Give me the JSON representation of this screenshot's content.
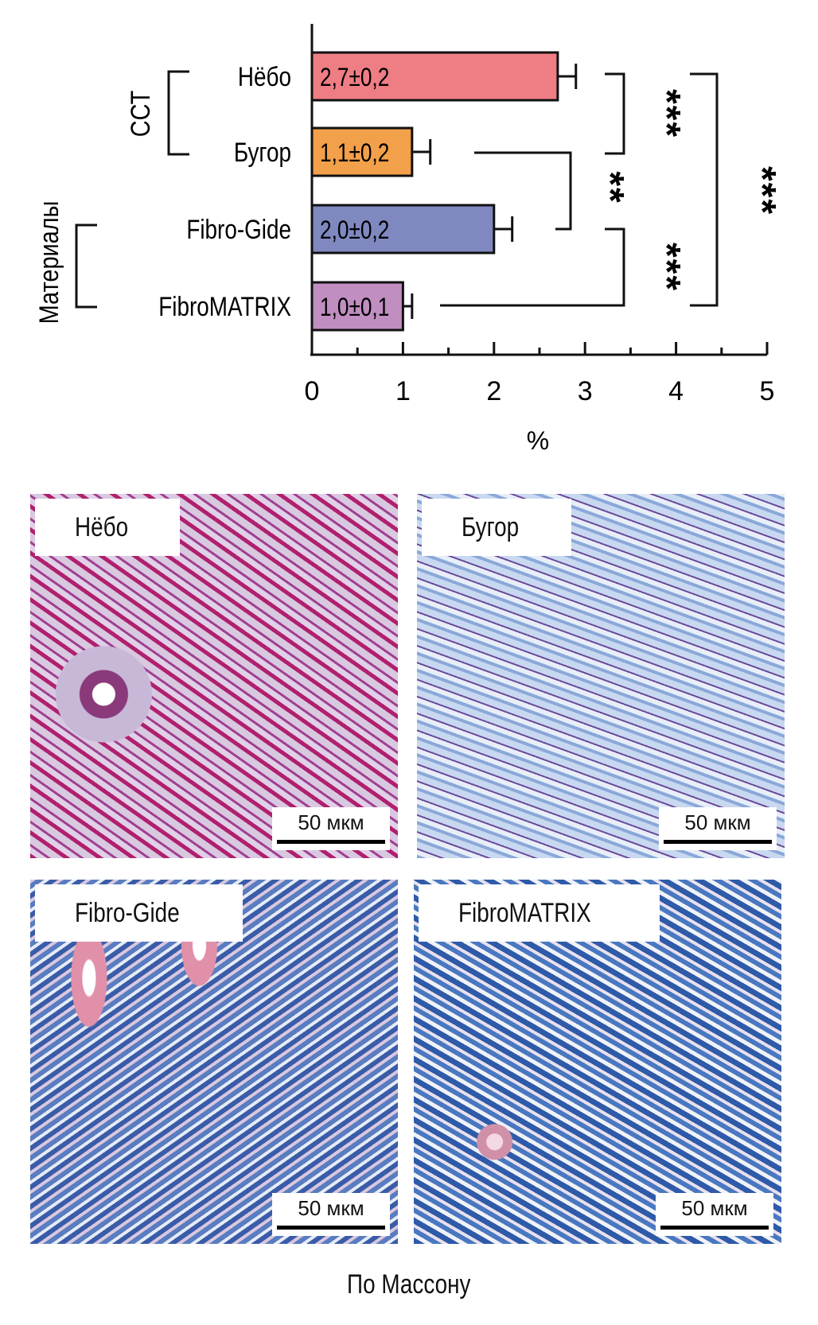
{
  "chart_data": {
    "type": "bar",
    "orientation": "horizontal",
    "categories": [
      "Нёбо",
      "Бугор",
      "Fibro-Gide",
      "FibroMATRIX"
    ],
    "values": [
      2.7,
      1.1,
      2.0,
      1.0
    ],
    "errors": [
      0.2,
      0.2,
      0.2,
      0.1
    ],
    "data_labels": [
      "2,7±0,2",
      "1,1±0,2",
      "2,0±0,2",
      "1,0±0,1"
    ],
    "colors": [
      "#ef7d84",
      "#f2a04a",
      "#8088c0",
      "#c08ec0"
    ],
    "xlabel": "%",
    "xlim": [
      0,
      5
    ],
    "xticks": [
      "0",
      "1",
      "2",
      "3",
      "4",
      "5"
    ],
    "groups": [
      {
        "label": "ССТ",
        "members": [
          "Нёбо",
          "Бугор"
        ]
      },
      {
        "label": "Материалы",
        "members": [
          "Fibro-Gide",
          "FibroMATRIX"
        ]
      }
    ],
    "significance": [
      {
        "pair": [
          "Нёбо",
          "Бугор"
        ],
        "stars": "***"
      },
      {
        "pair": [
          "Бугор",
          "Fibro-Gide"
        ],
        "stars": "**"
      },
      {
        "pair": [
          "Fibro-Gide",
          "FibroMATRIX"
        ],
        "stars": "***"
      },
      {
        "pair": [
          "Нёбо",
          "FibroMATRIX"
        ],
        "stars": "***"
      }
    ]
  },
  "panels": [
    {
      "label": "Нёбо",
      "scale": "50 мкм"
    },
    {
      "label": "Бугор",
      "scale": "50 мкм"
    },
    {
      "label": "Fibro-Gide",
      "scale": "50 мкм"
    },
    {
      "label": "FibroMATRIX",
      "scale": "50 мкм"
    }
  ],
  "caption": "По Массону"
}
